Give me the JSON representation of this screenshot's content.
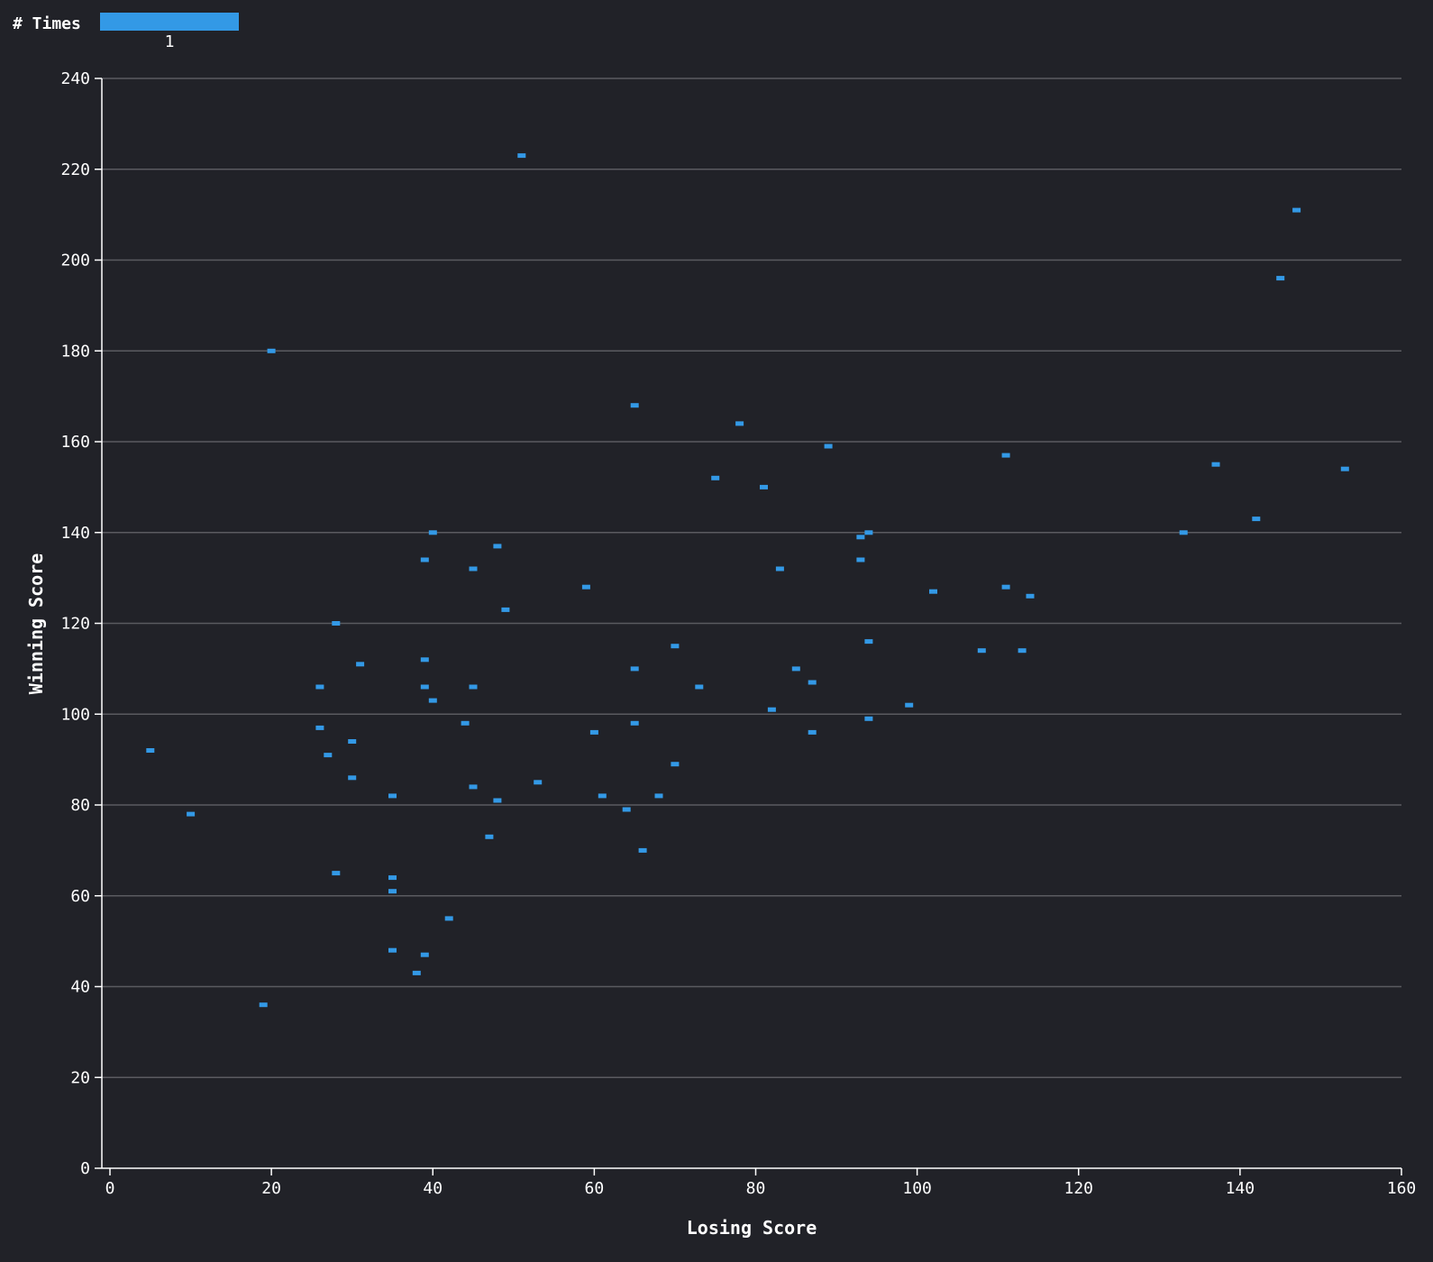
{
  "chart_data": {
    "type": "heatmap",
    "xlabel": "Losing Score",
    "ylabel": "Winning Score",
    "xlim": [
      0,
      160
    ],
    "ylim": [
      0,
      240
    ],
    "x_ticks": [
      "0",
      "20",
      "40",
      "60",
      "80",
      "100",
      "120",
      "140",
      "160"
    ],
    "y_ticks": [
      "0",
      "20",
      "40",
      "60",
      "80",
      "100",
      "120",
      "140",
      "160",
      "180",
      "200",
      "220",
      "240"
    ],
    "grid": "horizontal",
    "legend": {
      "title": "# Times",
      "label": "1",
      "placement": "top-left"
    },
    "colors": {
      "background": "#212228",
      "mark": "#3399e6",
      "grid": "#5a5b60",
      "axis": "#ffffff",
      "text": "#ffffff"
    },
    "points": [
      {
        "x": 5,
        "y": 92
      },
      {
        "x": 10,
        "y": 78
      },
      {
        "x": 19,
        "y": 36
      },
      {
        "x": 20,
        "y": 180
      },
      {
        "x": 26,
        "y": 106
      },
      {
        "x": 26,
        "y": 97
      },
      {
        "x": 27,
        "y": 91
      },
      {
        "x": 28,
        "y": 120
      },
      {
        "x": 28,
        "y": 65
      },
      {
        "x": 30,
        "y": 94
      },
      {
        "x": 30,
        "y": 86
      },
      {
        "x": 31,
        "y": 111
      },
      {
        "x": 35,
        "y": 82
      },
      {
        "x": 35,
        "y": 64
      },
      {
        "x": 35,
        "y": 61
      },
      {
        "x": 35,
        "y": 48
      },
      {
        "x": 38,
        "y": 43
      },
      {
        "x": 39,
        "y": 134
      },
      {
        "x": 39,
        "y": 112
      },
      {
        "x": 39,
        "y": 106
      },
      {
        "x": 39,
        "y": 47
      },
      {
        "x": 40,
        "y": 140
      },
      {
        "x": 40,
        "y": 103
      },
      {
        "x": 42,
        "y": 55
      },
      {
        "x": 44,
        "y": 98
      },
      {
        "x": 45,
        "y": 132
      },
      {
        "x": 45,
        "y": 106
      },
      {
        "x": 45,
        "y": 84
      },
      {
        "x": 47,
        "y": 73
      },
      {
        "x": 48,
        "y": 137
      },
      {
        "x": 48,
        "y": 81
      },
      {
        "x": 49,
        "y": 123
      },
      {
        "x": 51,
        "y": 223
      },
      {
        "x": 53,
        "y": 85
      },
      {
        "x": 59,
        "y": 128
      },
      {
        "x": 60,
        "y": 96
      },
      {
        "x": 61,
        "y": 82
      },
      {
        "x": 64,
        "y": 79
      },
      {
        "x": 65,
        "y": 168
      },
      {
        "x": 65,
        "y": 110
      },
      {
        "x": 65,
        "y": 98
      },
      {
        "x": 66,
        "y": 70
      },
      {
        "x": 68,
        "y": 82
      },
      {
        "x": 70,
        "y": 115
      },
      {
        "x": 70,
        "y": 89
      },
      {
        "x": 73,
        "y": 106
      },
      {
        "x": 75,
        "y": 152
      },
      {
        "x": 78,
        "y": 164
      },
      {
        "x": 81,
        "y": 150
      },
      {
        "x": 82,
        "y": 101
      },
      {
        "x": 83,
        "y": 132
      },
      {
        "x": 85,
        "y": 110
      },
      {
        "x": 87,
        "y": 107
      },
      {
        "x": 87,
        "y": 96
      },
      {
        "x": 89,
        "y": 159
      },
      {
        "x": 93,
        "y": 139
      },
      {
        "x": 93,
        "y": 134
      },
      {
        "x": 94,
        "y": 140
      },
      {
        "x": 94,
        "y": 116
      },
      {
        "x": 94,
        "y": 99
      },
      {
        "x": 99,
        "y": 102
      },
      {
        "x": 102,
        "y": 127
      },
      {
        "x": 108,
        "y": 114
      },
      {
        "x": 111,
        "y": 157
      },
      {
        "x": 111,
        "y": 128
      },
      {
        "x": 113,
        "y": 114
      },
      {
        "x": 114,
        "y": 126
      },
      {
        "x": 133,
        "y": 140
      },
      {
        "x": 137,
        "y": 155
      },
      {
        "x": 142,
        "y": 143
      },
      {
        "x": 145,
        "y": 196
      },
      {
        "x": 147,
        "y": 211
      },
      {
        "x": 153,
        "y": 154
      }
    ]
  }
}
